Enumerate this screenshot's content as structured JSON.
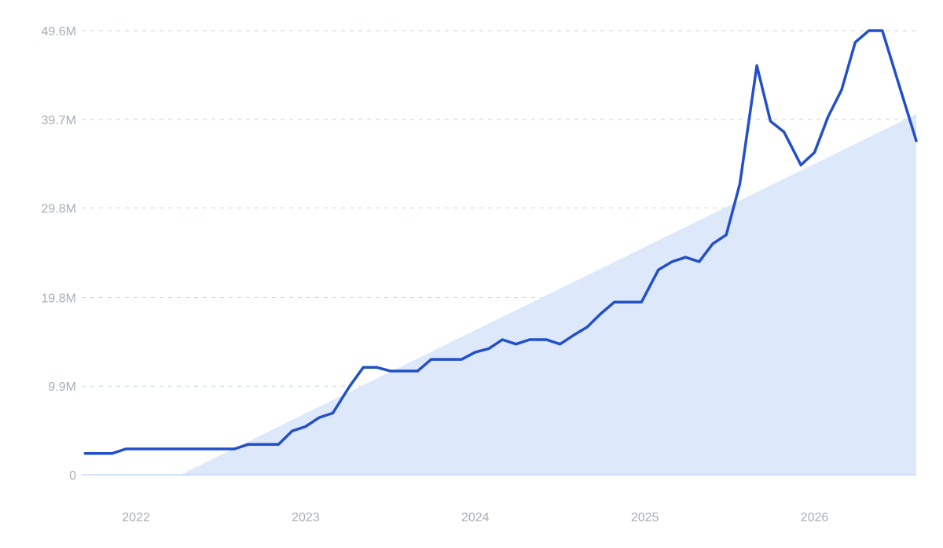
{
  "chart_data": {
    "type": "line",
    "x_ticks": [
      "2022",
      "2023",
      "2024",
      "2025",
      "2026"
    ],
    "y_ticks": [
      "0",
      "9.9M",
      "19.8M",
      "29.8M",
      "39.7M",
      "49.6M"
    ],
    "y_tick_values": [
      0,
      9900000,
      19800000,
      29800000,
      39700000,
      49600000
    ],
    "xlim": [
      2021.68,
      2026.6
    ],
    "ylim": [
      0,
      49600000
    ],
    "grid": true,
    "colors": {
      "line": "#2350c8",
      "trend_fill": "#dde9fa",
      "grid": "#c9d6dd",
      "baseline": "#c7dbf4"
    },
    "series": [
      {
        "style": "line",
        "points": [
          [
            2021.7,
            2400000
          ],
          [
            2021.86,
            2400000
          ],
          [
            2021.94,
            2900000
          ],
          [
            2022.1,
            2900000
          ],
          [
            2022.3,
            2900000
          ],
          [
            2022.5,
            2900000
          ],
          [
            2022.58,
            2900000
          ],
          [
            2022.66,
            3400000
          ],
          [
            2022.84,
            3400000
          ],
          [
            2022.92,
            4900000
          ],
          [
            2023.0,
            5400000
          ],
          [
            2023.08,
            6400000
          ],
          [
            2023.16,
            6900000
          ],
          [
            2023.26,
            9900000
          ],
          [
            2023.34,
            12000000
          ],
          [
            2023.42,
            12000000
          ],
          [
            2023.5,
            11600000
          ],
          [
            2023.66,
            11600000
          ],
          [
            2023.74,
            12900000
          ],
          [
            2023.92,
            12900000
          ],
          [
            2024.0,
            13700000
          ],
          [
            2024.08,
            14100000
          ],
          [
            2024.16,
            15100000
          ],
          [
            2024.24,
            14600000
          ],
          [
            2024.32,
            15100000
          ],
          [
            2024.42,
            15100000
          ],
          [
            2024.5,
            14600000
          ],
          [
            2024.58,
            15600000
          ],
          [
            2024.66,
            16500000
          ],
          [
            2024.74,
            18000000
          ],
          [
            2024.82,
            19300000
          ],
          [
            2024.98,
            19300000
          ],
          [
            2025.08,
            22900000
          ],
          [
            2025.16,
            23800000
          ],
          [
            2025.24,
            24300000
          ],
          [
            2025.32,
            23800000
          ],
          [
            2025.4,
            25800000
          ],
          [
            2025.48,
            26800000
          ],
          [
            2025.56,
            32500000
          ],
          [
            2025.66,
            45700000
          ],
          [
            2025.74,
            39500000
          ],
          [
            2025.82,
            38300000
          ],
          [
            2025.92,
            34600000
          ],
          [
            2026.0,
            36000000
          ],
          [
            2026.08,
            40000000
          ],
          [
            2026.16,
            43000000
          ],
          [
            2026.24,
            48300000
          ],
          [
            2026.32,
            49600000
          ],
          [
            2026.4,
            49600000
          ],
          [
            2026.6,
            37300000
          ]
        ]
      },
      {
        "style": "area",
        "points": [
          [
            2022.26,
            0
          ],
          [
            2026.6,
            40300000
          ]
        ]
      }
    ]
  }
}
